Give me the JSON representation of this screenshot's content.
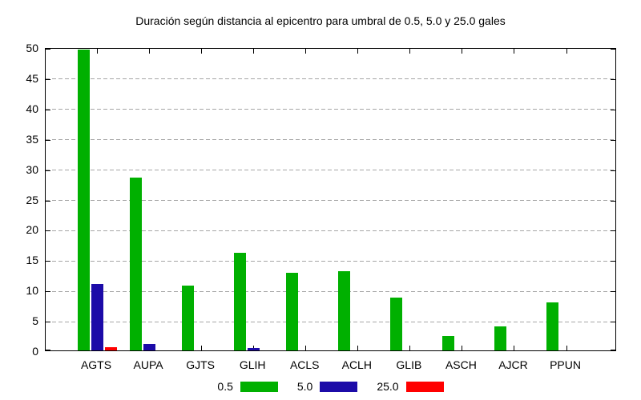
{
  "chart_data": {
    "type": "bar",
    "title": "Duración según distancia al epicentro para umbral de 0.5, 5.0 y 25.0 gales",
    "categories": [
      "AGTS",
      "AUPA",
      "GJTS",
      "GLIH",
      "ACLS",
      "ACLH",
      "GLIB",
      "ASCH",
      "AJCR",
      "PPUN"
    ],
    "series": [
      {
        "name": "0.5",
        "color": "#00b000",
        "values": [
          49.6,
          28.5,
          10.7,
          16.1,
          12.8,
          13.0,
          8.7,
          2.4,
          4.0,
          7.9
        ]
      },
      {
        "name": "5.0",
        "color": "#1c0ba8",
        "values": [
          10.9,
          1.1,
          0,
          0.4,
          0,
          0,
          0,
          0,
          0,
          0
        ]
      },
      {
        "name": "25.0",
        "color": "#ff0000",
        "values": [
          0.5,
          0,
          0,
          0,
          0,
          0,
          0,
          0,
          0,
          0
        ]
      }
    ],
    "xlabel": "",
    "ylabel": "",
    "ylim": [
      0,
      50
    ],
    "yticks": [
      0,
      5,
      10,
      15,
      20,
      25,
      30,
      35,
      40,
      45,
      50
    ],
    "grid": true,
    "legend_position": "bottom-center"
  },
  "colors": {
    "background": "#ffffff",
    "axis": "#000000",
    "grid": "#a6a6a6",
    "text": "#000000"
  }
}
